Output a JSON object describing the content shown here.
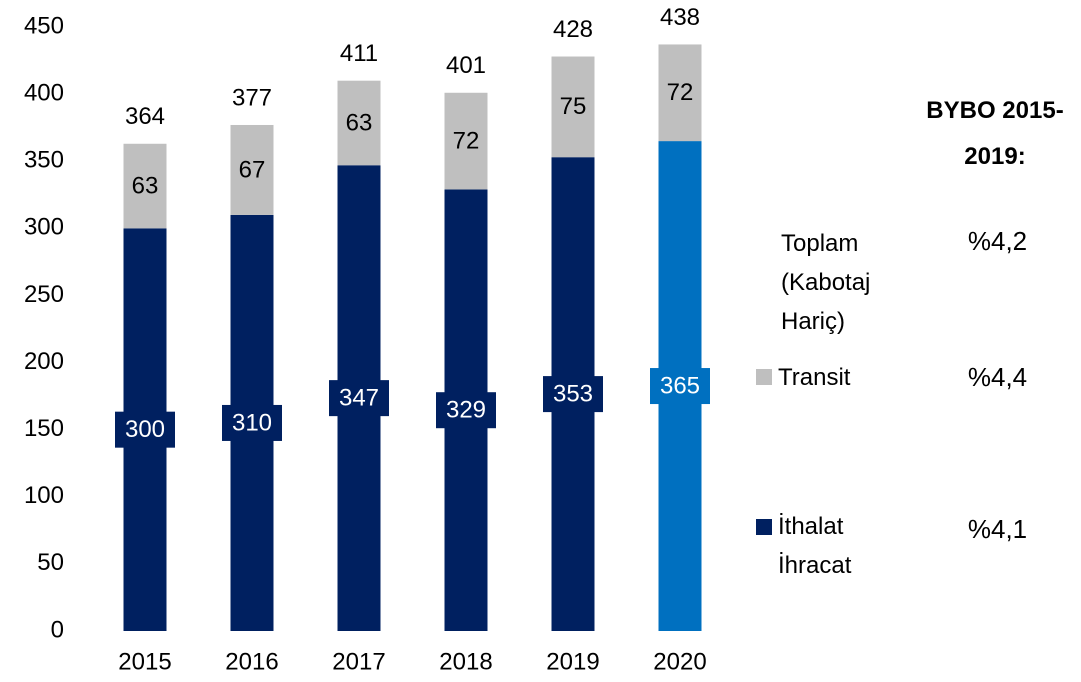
{
  "chart_data": {
    "type": "stacked_bar",
    "categories": [
      "2015",
      "2016",
      "2017",
      "2018",
      "2019",
      "2020"
    ],
    "series": [
      {
        "name": "İthalat İhracat",
        "color": "#002060",
        "colors": [
          "#002060",
          "#002060",
          "#002060",
          "#002060",
          "#002060",
          "#0070c0"
        ],
        "values": [
          300,
          310,
          347,
          329,
          353,
          365
        ]
      },
      {
        "name": "Transit",
        "color": "#bfbfbf",
        "values": [
          63,
          67,
          63,
          72,
          75,
          72
        ]
      }
    ],
    "totals": [
      364,
      377,
      411,
      401,
      428,
      438
    ],
    "ylim": [
      0,
      450
    ],
    "yticks": [
      0,
      50,
      100,
      150,
      200,
      250,
      300,
      350,
      400,
      450
    ],
    "growth_title": "BYBO 2015-2019:",
    "total_label": "Toplam (Kabotaj Hariç)",
    "growth_rates": [
      "%4,2",
      "%4,4",
      "%4,1"
    ]
  }
}
